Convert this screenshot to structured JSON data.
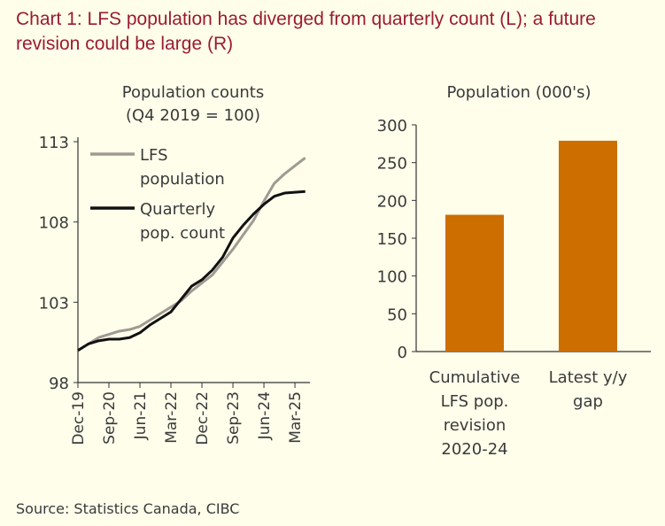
{
  "title": "Chart 1: LFS population has diverged from quarterly count (L); a future revision could be large (R)",
  "source": "Source: Statistics Canada, CIBC",
  "chart_data": [
    {
      "type": "line",
      "title": "Population counts (Q4 2019 = 100)",
      "title_lines": [
        "Population counts",
        "(Q4 2019 = 100)"
      ],
      "ylim": [
        98,
        113
      ],
      "yticks": [
        "98",
        "103",
        "108",
        "113"
      ],
      "xtick_labels": [
        "Dec-19",
        "Sep-20",
        "Jun-21",
        "Mar-22",
        "Dec-22",
        "Sep-23",
        "Jun-24",
        "Mar-25"
      ],
      "x": [
        "Dec-19",
        "Mar-20",
        "Jun-20",
        "Sep-20",
        "Dec-20",
        "Mar-21",
        "Jun-21",
        "Sep-21",
        "Dec-21",
        "Mar-22",
        "Jun-22",
        "Sep-22",
        "Dec-22",
        "Mar-23",
        "Jun-23",
        "Sep-23",
        "Dec-23",
        "Mar-24",
        "Jun-24",
        "Sep-24",
        "Dec-24",
        "Mar-25",
        "Jun-25"
      ],
      "legend_placement": "top-left",
      "series": [
        {
          "name": "LFS population",
          "color": "#A09A92",
          "values": [
            100.0,
            100.4,
            100.8,
            101.0,
            101.2,
            101.3,
            101.5,
            101.9,
            102.3,
            102.7,
            103.1,
            103.7,
            104.2,
            104.7,
            105.5,
            106.3,
            107.2,
            108.1,
            109.3,
            110.4,
            111.0,
            111.5,
            112.0
          ]
        },
        {
          "name": "Quarterly pop. count",
          "color": "#111111",
          "values": [
            100.0,
            100.4,
            100.6,
            100.7,
            100.7,
            100.8,
            101.1,
            101.6,
            102.0,
            102.4,
            103.2,
            104.0,
            104.4,
            105.0,
            105.8,
            107.0,
            107.8,
            108.5,
            109.1,
            109.6,
            109.8,
            109.85,
            109.9
          ]
        }
      ],
      "legend_lines": [
        [
          "LFS",
          "population"
        ],
        [
          "Quarterly",
          "pop. count"
        ]
      ]
    },
    {
      "type": "bar",
      "title": "Population (000's)",
      "ylim": [
        0,
        300
      ],
      "yticks": [
        "0",
        "50",
        "100",
        "150",
        "200",
        "250",
        "300"
      ],
      "categories": [
        [
          "Cumulative",
          "LFS pop.",
          "revision",
          "2020-24"
        ],
        [
          "Latest y/y",
          "gap"
        ]
      ],
      "values": [
        181,
        279
      ],
      "color": "#CC6E00"
    }
  ]
}
